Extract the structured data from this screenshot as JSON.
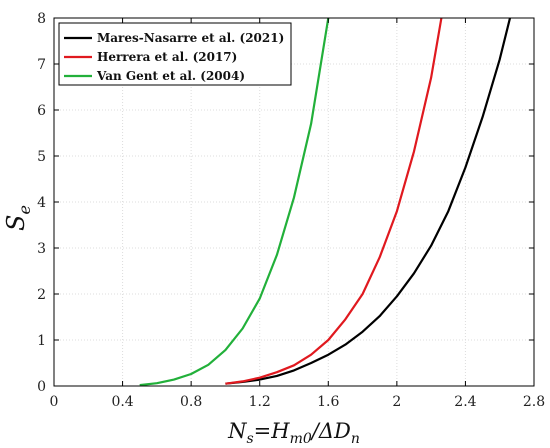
{
  "chart_data": {
    "type": "line",
    "xlabel": {
      "N": "N",
      "s": "s",
      "eq": "=H",
      "m0": "m0",
      "slash": "/ΔD",
      "n": "n"
    },
    "ylabel": {
      "S": "S",
      "e": "e"
    },
    "xlim": [
      0,
      2.8
    ],
    "ylim": [
      0,
      8
    ],
    "xticks": [
      "0",
      "0.4",
      "0.8",
      "1.2",
      "1.6",
      "2",
      "2.4",
      "2.8"
    ],
    "yticks": [
      "0",
      "1",
      "2",
      "3",
      "4",
      "5",
      "6",
      "7",
      "8"
    ],
    "grid": true,
    "legend_position": "top-left",
    "series": [
      {
        "name": "Mares-Nasarre et al. (2021)",
        "color": "#000000",
        "points": [
          [
            1.0,
            0.05
          ],
          [
            1.1,
            0.09
          ],
          [
            1.2,
            0.14
          ],
          [
            1.3,
            0.22
          ],
          [
            1.4,
            0.34
          ],
          [
            1.5,
            0.5
          ],
          [
            1.6,
            0.68
          ],
          [
            1.7,
            0.9
          ],
          [
            1.8,
            1.18
          ],
          [
            1.9,
            1.52
          ],
          [
            2.0,
            1.95
          ],
          [
            2.1,
            2.45
          ],
          [
            2.2,
            3.05
          ],
          [
            2.3,
            3.8
          ],
          [
            2.4,
            4.75
          ],
          [
            2.5,
            5.85
          ],
          [
            2.6,
            7.1
          ],
          [
            2.66,
            8.0
          ]
        ]
      },
      {
        "name": "Herrera et al. (2017)",
        "color": "#e0191f",
        "points": [
          [
            1.0,
            0.05
          ],
          [
            1.1,
            0.1
          ],
          [
            1.2,
            0.18
          ],
          [
            1.3,
            0.3
          ],
          [
            1.4,
            0.45
          ],
          [
            1.5,
            0.68
          ],
          [
            1.6,
            1.0
          ],
          [
            1.7,
            1.45
          ],
          [
            1.8,
            2.0
          ],
          [
            1.9,
            2.8
          ],
          [
            2.0,
            3.8
          ],
          [
            2.1,
            5.1
          ],
          [
            2.2,
            6.7
          ],
          [
            2.26,
            8.0
          ]
        ]
      },
      {
        "name": "Van Gent et al. (2004)",
        "color": "#22b03a",
        "points": [
          [
            0.5,
            0.02
          ],
          [
            0.6,
            0.06
          ],
          [
            0.7,
            0.14
          ],
          [
            0.8,
            0.26
          ],
          [
            0.9,
            0.46
          ],
          [
            1.0,
            0.78
          ],
          [
            1.1,
            1.25
          ],
          [
            1.2,
            1.9
          ],
          [
            1.3,
            2.85
          ],
          [
            1.4,
            4.1
          ],
          [
            1.5,
            5.7
          ],
          [
            1.6,
            8.0
          ]
        ]
      }
    ]
  }
}
